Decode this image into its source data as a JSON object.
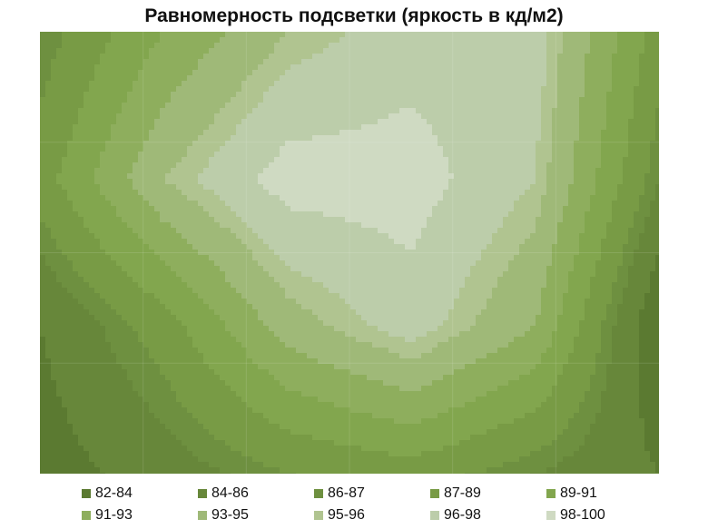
{
  "chart_data": {
    "type": "heatmap",
    "title": "Равномерность подсветки (яркость в кд/м2)",
    "grid_rows": 4,
    "grid_cols": 6,
    "values": [
      [
        86,
        91,
        95,
        97,
        97,
        88
      ],
      [
        88,
        95,
        99,
        99,
        96,
        86
      ],
      [
        84,
        88,
        94,
        97,
        93,
        82
      ],
      [
        83,
        85,
        87,
        88,
        86,
        84
      ]
    ],
    "bands": [
      {
        "label": "82-84",
        "min": 82,
        "max": 84,
        "color": "#5b7a31"
      },
      {
        "label": "84-86",
        "min": 84,
        "max": 86,
        "color": "#67873a"
      },
      {
        "label": "86-87",
        "min": 86,
        "max": 87,
        "color": "#6e9040"
      },
      {
        "label": "87-89",
        "min": 87,
        "max": 89,
        "color": "#789b45"
      },
      {
        "label": "89-91",
        "min": 89,
        "max": 91,
        "color": "#82a64e"
      },
      {
        "label": "91-93",
        "min": 91,
        "max": 93,
        "color": "#8eae5d"
      },
      {
        "label": "93-95",
        "min": 93,
        "max": 95,
        "color": "#9fb978"
      },
      {
        "label": "95-96",
        "min": 95,
        "max": 96,
        "color": "#b0c490"
      },
      {
        "label": "96-98",
        "min": 96,
        "max": 98,
        "color": "#bccdaa"
      },
      {
        "label": "98-100",
        "min": 98,
        "max": 100,
        "color": "#cfdac2"
      }
    ],
    "legend": "bottom"
  }
}
